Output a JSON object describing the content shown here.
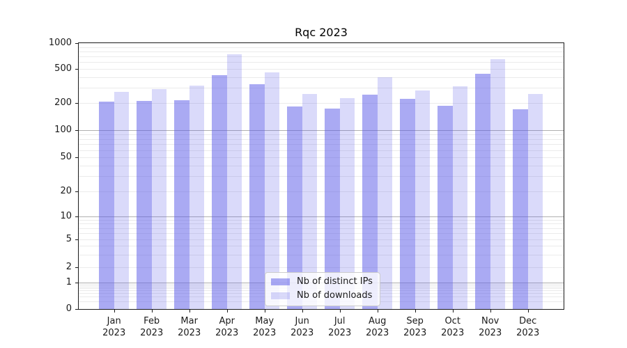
{
  "chart_data": {
    "type": "bar",
    "title": "Rqc 2023",
    "categories": [
      "Jan 2023",
      "Feb 2023",
      "Mar 2023",
      "Apr 2023",
      "May 2023",
      "Jun 2023",
      "Jul 2023",
      "Aug 2023",
      "Sep 2023",
      "Oct 2023",
      "Nov 2023",
      "Dec 2023"
    ],
    "series": [
      {
        "name": "Nb of distinct IPs",
        "color": "rgba(86,86,232,0.50)",
        "values": [
          207,
          211,
          216,
          418,
          331,
          184,
          173,
          248,
          222,
          188,
          434,
          172
        ]
      },
      {
        "name": "Nb of downloads",
        "color": "rgba(86,86,232,0.22)",
        "values": [
          267,
          290,
          321,
          740,
          452,
          253,
          228,
          398,
          277,
          311,
          650,
          254
        ]
      }
    ],
    "ylim": [
      0,
      1000
    ],
    "yticks": [
      0,
      1,
      2,
      5,
      10,
      20,
      50,
      100,
      200,
      500,
      1000
    ],
    "yscale": "log-like",
    "grid": "horizontal, major and minor lines",
    "legend_position": "lower center"
  },
  "colors": {
    "bar_distinct_ips": "rgba(86,86,232,0.50)",
    "bar_downloads": "rgba(86,86,232,0.22)",
    "grid_major": "#b0b0b0",
    "grid_minor": "#ebebeb",
    "spine": "#1a1a1a",
    "background": "#ffffff"
  }
}
